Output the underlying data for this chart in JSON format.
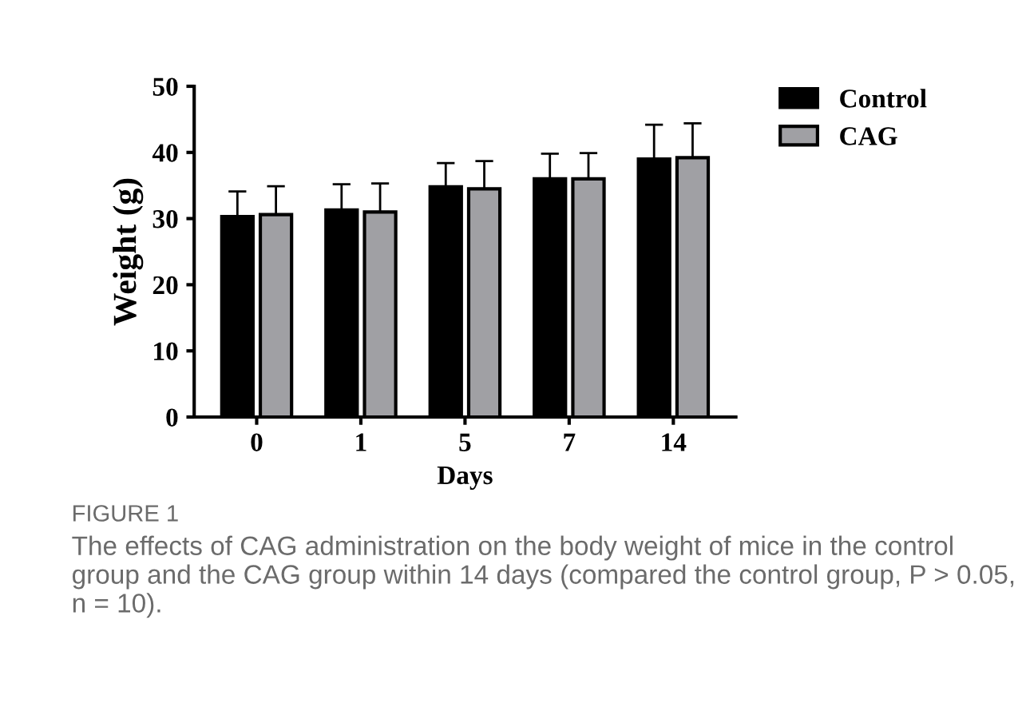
{
  "chart_data": {
    "type": "bar",
    "xlabel": "Days",
    "ylabel": "Weight (g)",
    "categories": [
      "0",
      "1",
      "5",
      "7",
      "14"
    ],
    "series": [
      {
        "name": "Control",
        "color": "#000000",
        "values": [
          30.3,
          31.3,
          34.8,
          36.0,
          39.0
        ],
        "errors": [
          [
            30.3,
            34.1
          ],
          [
            31.3,
            35.2
          ],
          [
            34.8,
            38.4
          ],
          [
            36.0,
            39.8
          ],
          [
            39.0,
            44.2
          ]
        ]
      },
      {
        "name": "CAG",
        "color": "#a0a0a4",
        "values": [
          30.6,
          31.0,
          34.5,
          36.0,
          39.2
        ],
        "errors": [
          [
            30.6,
            34.9
          ],
          [
            31.0,
            35.3
          ],
          [
            34.5,
            38.7
          ],
          [
            36.0,
            39.9
          ],
          [
            39.2,
            44.4
          ]
        ]
      }
    ],
    "ylim": [
      0,
      50
    ],
    "yticks": [
      0,
      10,
      20,
      30,
      40,
      50
    ],
    "grid": false,
    "legend": "top right",
    "annotations": [
      "FIGURE 1",
      "The effects of CAG administration on the body weight of mice in the control group and the CAG group within 14 days (compared the control group, P > 0.05, n = 10)."
    ]
  }
}
